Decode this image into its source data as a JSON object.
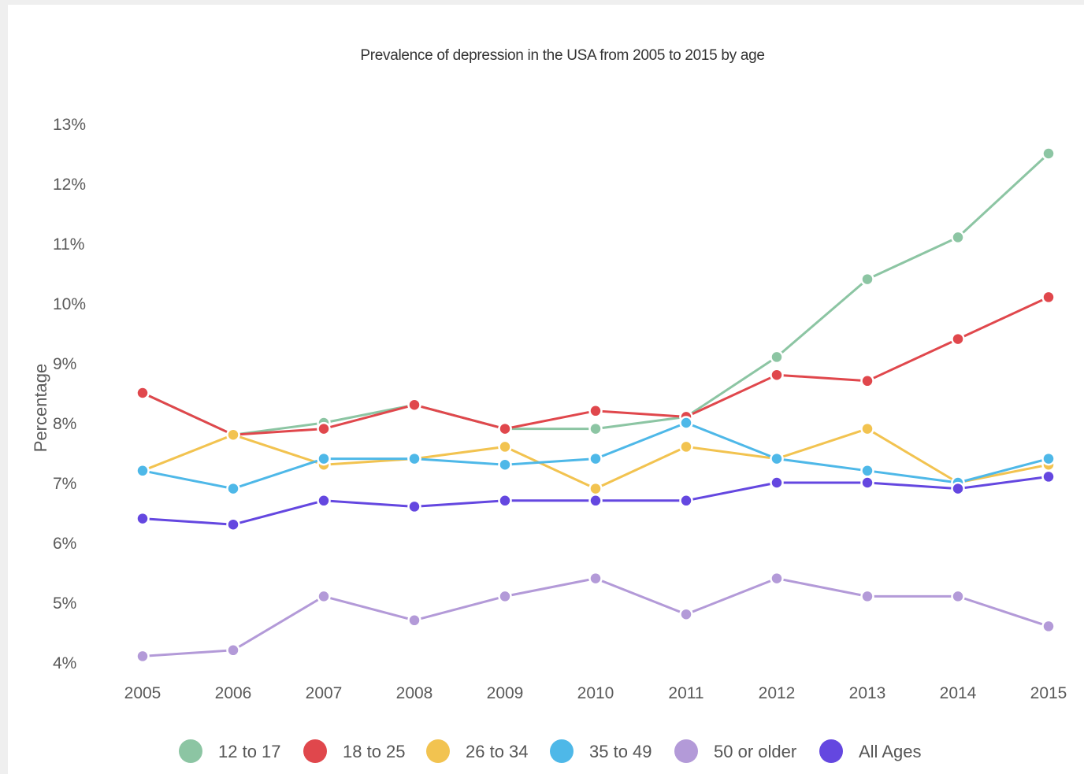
{
  "chart_data": {
    "type": "line",
    "title": "Prevalence of depression in the USA from 2005 to 2015 by age",
    "ylabel": "Percentage",
    "xlabel": "",
    "categories": [
      "2005",
      "2006",
      "2007",
      "2008",
      "2009",
      "2010",
      "2011",
      "2012",
      "2013",
      "2014",
      "2015"
    ],
    "ylim": [
      4,
      13
    ],
    "y_ticks": [
      "4%",
      "5%",
      "6%",
      "7%",
      "8%",
      "9%",
      "10%",
      "11%",
      "12%",
      "13%"
    ],
    "y_tick_values": [
      4,
      5,
      6,
      7,
      8,
      9,
      10,
      11,
      12,
      13
    ],
    "grid": false,
    "legend_position": "bottom",
    "series": [
      {
        "name": "12 to 17",
        "color": "#8cc5a3",
        "values": [
          8.5,
          7.8,
          8.0,
          8.3,
          7.9,
          7.9,
          8.1,
          9.1,
          10.4,
          11.1,
          12.5
        ]
      },
      {
        "name": "18 to 25",
        "color": "#e0474c",
        "values": [
          8.5,
          7.8,
          7.9,
          8.3,
          7.9,
          8.2,
          8.1,
          8.8,
          8.7,
          9.4,
          10.1
        ]
      },
      {
        "name": "26 to 34",
        "color": "#f2c350",
        "values": [
          7.2,
          7.8,
          7.3,
          7.4,
          7.6,
          6.9,
          7.6,
          7.4,
          7.9,
          7.0,
          7.3
        ]
      },
      {
        "name": "35 to 49",
        "color": "#4eb8e8",
        "values": [
          7.2,
          6.9,
          7.4,
          7.4,
          7.3,
          7.4,
          8.0,
          7.4,
          7.2,
          7.0,
          7.4
        ]
      },
      {
        "name": "50 or older",
        "color": "#b39ad8",
        "values": [
          4.1,
          4.2,
          5.1,
          4.7,
          5.1,
          5.4,
          4.8,
          5.4,
          5.1,
          5.1,
          4.6
        ]
      },
      {
        "name": "All Ages",
        "color": "#6447e0",
        "values": [
          6.4,
          6.3,
          6.7,
          6.6,
          6.7,
          6.7,
          6.7,
          7.0,
          7.0,
          6.9,
          7.1
        ]
      }
    ]
  }
}
